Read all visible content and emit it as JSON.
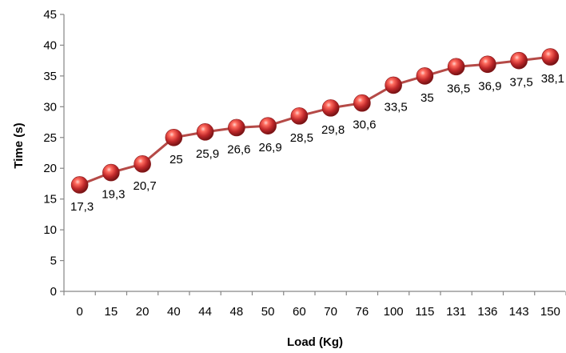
{
  "chart_data": {
    "type": "line",
    "title": "",
    "xlabel": "Load (Kg)",
    "ylabel": "Time (s)",
    "categories": [
      "0",
      "15",
      "20",
      "40",
      "44",
      "48",
      "50",
      "60",
      "70",
      "76",
      "100",
      "115",
      "131",
      "136",
      "143",
      "150"
    ],
    "series": [
      {
        "values": [
          17.3,
          19.3,
          20.7,
          25,
          25.9,
          26.6,
          26.9,
          28.5,
          29.8,
          30.6,
          33.5,
          35,
          36.5,
          36.9,
          37.5,
          38.1
        ],
        "data_labels": [
          "17,3",
          "19,3",
          "20,7",
          "25",
          "25,9",
          "26,6",
          "26,9",
          "28,5",
          "29,8",
          "30,6",
          "33,5",
          "35",
          "36,5",
          "36,9",
          "37,5",
          "38,1"
        ]
      }
    ],
    "y_ticks": [
      "0",
      "5",
      "10",
      "15",
      "20",
      "25",
      "30",
      "35",
      "40",
      "45"
    ],
    "ylim": [
      0,
      45
    ],
    "grid": false,
    "legend": "none",
    "colors": {
      "line": "#b54a47",
      "marker": "#c0282a",
      "axis": "#868686"
    }
  }
}
